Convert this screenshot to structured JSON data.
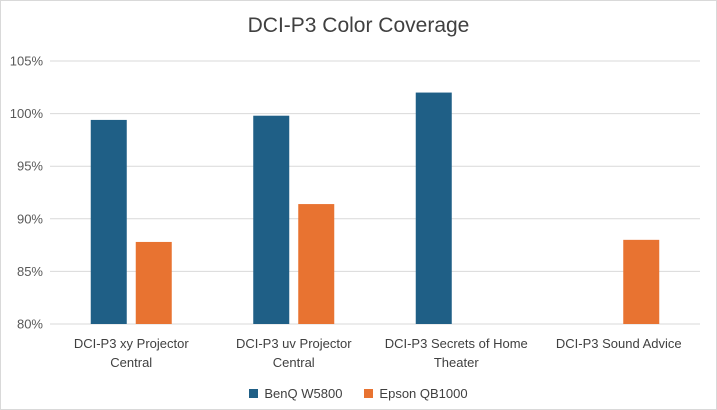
{
  "chart_data": {
    "type": "bar",
    "title": "DCI-P3 Color Coverage",
    "xlabel": "",
    "ylabel": "",
    "ylim": [
      80,
      105
    ],
    "yticks": [
      "80%",
      "85%",
      "90%",
      "95%",
      "100%",
      "105%"
    ],
    "yticks_values": [
      80,
      85,
      90,
      95,
      100,
      105
    ],
    "grid": true,
    "legend_position": "bottom",
    "categories": [
      [
        "DCI-P3 xy Projector",
        "Central"
      ],
      [
        "DCI-P3 uv Projector",
        "Central"
      ],
      [
        "DCI-P3 Secrets of Home",
        "Theater"
      ],
      [
        "DCI-P3 Sound Advice"
      ]
    ],
    "series": [
      {
        "name": "BenQ W5800",
        "color": "#1f5f86",
        "values": [
          99.4,
          99.8,
          102.0,
          null
        ]
      },
      {
        "name": "Epson QB1000",
        "color": "#e87331",
        "values": [
          87.8,
          91.4,
          null,
          88.0
        ]
      }
    ]
  }
}
